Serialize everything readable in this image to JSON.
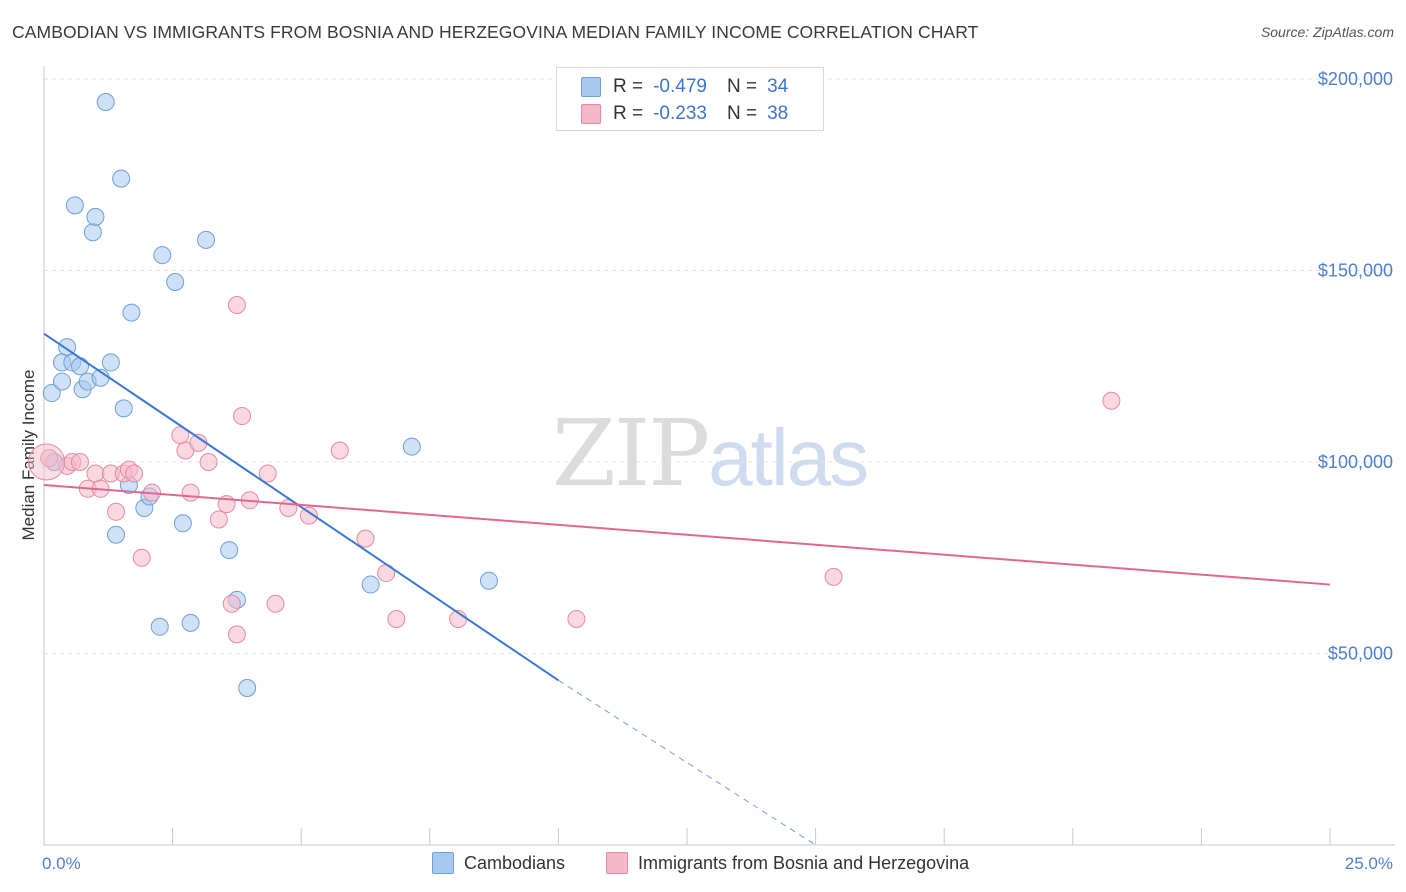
{
  "header": {
    "title": "CAMBODIAN VS IMMIGRANTS FROM BOSNIA AND HERZEGOVINA MEDIAN FAMILY INCOME CORRELATION CHART",
    "source": "Source: ZipAtlas.com"
  },
  "watermark": {
    "zip": "ZIP",
    "atlas": "atlas"
  },
  "legend": {
    "rows": [
      {
        "r_label": "R =",
        "r_value": "-0.479",
        "n_label": "N =",
        "n_value": "34",
        "color": "#a8c8f0"
      },
      {
        "r_label": "R =",
        "r_value": "-0.233",
        "n_label": "N =",
        "n_value": "38",
        "color": "#f5b8c8"
      }
    ]
  },
  "bottom_legend": {
    "items": [
      {
        "label": "Cambodians",
        "color": "#a8c8f0"
      },
      {
        "label": "Immigrants from Bosnia and Herzegovina",
        "color": "#f5b8c8"
      }
    ]
  },
  "chart_data": {
    "type": "scatter",
    "title": "CAMBODIAN VS IMMIGRANTS FROM BOSNIA AND HERZEGOVINA MEDIAN FAMILY INCOME CORRELATION CHART",
    "xlabel": "",
    "ylabel": "Median Family Income",
    "xlim": [
      0,
      25
    ],
    "ylim": [
      0,
      200000
    ],
    "x_tick_labels": [
      "0.0%",
      "25.0%"
    ],
    "y_ticks": [
      {
        "value": 50000,
        "label": "$50,000"
      },
      {
        "value": 100000,
        "label": "$100,000"
      },
      {
        "value": 150000,
        "label": "$150,000"
      },
      {
        "value": 200000,
        "label": "$200,000"
      }
    ],
    "grid": true,
    "legend_position": "top-center",
    "series": [
      {
        "name": "Cambodians",
        "color": "#a8c8f0",
        "stroke": "#6f9fd8",
        "trend_color": "#3a78d4",
        "trend": {
          "x0": 0.0,
          "y0": 133500,
          "x1": 10.0,
          "y1": 43000,
          "dash_to_x": 15.0
        },
        "points": [
          [
            0.2,
            100000
          ],
          [
            0.15,
            118000
          ],
          [
            0.35,
            126000
          ],
          [
            0.35,
            121000
          ],
          [
            0.45,
            130000
          ],
          [
            0.55,
            126000
          ],
          [
            0.7,
            125000
          ],
          [
            0.75,
            119000
          ],
          [
            0.85,
            121000
          ],
          [
            1.1,
            122000
          ],
          [
            1.3,
            126000
          ],
          [
            0.6,
            167000
          ],
          [
            0.95,
            160000
          ],
          [
            1.0,
            164000
          ],
          [
            1.2,
            194000
          ],
          [
            1.5,
            174000
          ],
          [
            1.7,
            139000
          ],
          [
            1.55,
            114000
          ],
          [
            1.65,
            94000
          ],
          [
            1.4,
            81000
          ],
          [
            1.95,
            88000
          ],
          [
            2.05,
            91000
          ],
          [
            2.3,
            154000
          ],
          [
            2.55,
            147000
          ],
          [
            3.15,
            158000
          ],
          [
            2.7,
            84000
          ],
          [
            3.6,
            77000
          ],
          [
            3.75,
            64000
          ],
          [
            2.25,
            57000
          ],
          [
            2.85,
            58000
          ],
          [
            3.95,
            41000
          ],
          [
            6.35,
            68000
          ],
          [
            7.15,
            104000
          ],
          [
            8.65,
            69000
          ]
        ]
      },
      {
        "name": "Immigrants from Bosnia and Herzegovina",
        "color": "#f5b8c8",
        "stroke": "#e58aa4",
        "trend_color": "#e06890",
        "trend": {
          "x0": 0.0,
          "y0": 94000,
          "x1": 25.0,
          "y1": 68000
        },
        "points": [
          [
            0.1,
            101000
          ],
          [
            0.45,
            99000
          ],
          [
            0.55,
            100000
          ],
          [
            0.7,
            100000
          ],
          [
            0.85,
            93000
          ],
          [
            1.0,
            97000
          ],
          [
            1.1,
            93000
          ],
          [
            1.3,
            97000
          ],
          [
            1.4,
            87000
          ],
          [
            1.55,
            97000
          ],
          [
            1.65,
            98000
          ],
          [
            1.75,
            97000
          ],
          [
            1.9,
            75000
          ],
          [
            2.1,
            92000
          ],
          [
            2.65,
            107000
          ],
          [
            2.75,
            103000
          ],
          [
            2.85,
            92000
          ],
          [
            3.0,
            105000
          ],
          [
            3.2,
            100000
          ],
          [
            3.4,
            85000
          ],
          [
            3.55,
            89000
          ],
          [
            3.75,
            141000
          ],
          [
            3.85,
            112000
          ],
          [
            4.0,
            90000
          ],
          [
            3.65,
            63000
          ],
          [
            3.75,
            55000
          ],
          [
            4.35,
            97000
          ],
          [
            4.5,
            63000
          ],
          [
            4.75,
            88000
          ],
          [
            5.15,
            86000
          ],
          [
            5.75,
            103000
          ],
          [
            6.25,
            80000
          ],
          [
            6.65,
            71000
          ],
          [
            6.85,
            59000
          ],
          [
            8.05,
            59000
          ],
          [
            10.35,
            59000
          ],
          [
            15.35,
            70000
          ],
          [
            20.75,
            116000
          ]
        ]
      }
    ]
  }
}
